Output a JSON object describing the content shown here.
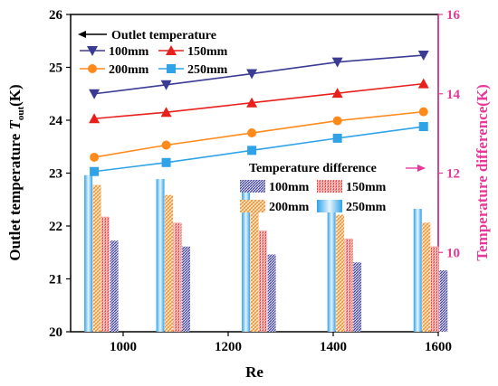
{
  "chart_data": {
    "type": "bar+line",
    "xlabel": "Re",
    "ylabel_left": {
      "main": "Outlet temperature ",
      "italic": "T",
      "sub": "out",
      "unit": "(K)"
    },
    "ylabel_right": "Temperature difference(K)",
    "x_range": [
      900,
      1600
    ],
    "x_ticks": [
      "1000",
      "1200",
      "1400",
      "1600"
    ],
    "y_left_range": [
      20,
      26
    ],
    "y_left_ticks": [
      "20",
      "21",
      "22",
      "23",
      "24",
      "25",
      "26"
    ],
    "y_right_range": [
      8,
      16
    ],
    "y_right_ticks": [
      "10",
      "12",
      "14",
      "16"
    ],
    "legend_outlet_title": "Outlet temperature",
    "legend_diff_title": "Temperature difference",
    "colors": {
      "100mm": "#3b3b94",
      "150mm": "#e8201c",
      "200mm": "#ff8a1c",
      "250mm": "#2fa2e8",
      "right_axis": "#e8389a",
      "axis": "#000000"
    },
    "line_series": [
      {
        "name": "100mm",
        "marker": "triangle-down",
        "x": [
          945,
          1082,
          1245,
          1408,
          1572
        ],
        "y": [
          24.5,
          24.67,
          24.88,
          25.1,
          25.23
        ]
      },
      {
        "name": "150mm",
        "marker": "triangle-up",
        "x": [
          945,
          1082,
          1245,
          1408,
          1572
        ],
        "y": [
          24.03,
          24.15,
          24.33,
          24.51,
          24.69
        ]
      },
      {
        "name": "200mm",
        "marker": "circle",
        "x": [
          945,
          1082,
          1245,
          1408,
          1572
        ],
        "y": [
          23.3,
          23.53,
          23.76,
          23.99,
          24.16
        ]
      },
      {
        "name": "250mm",
        "marker": "square",
        "x": [
          945,
          1082,
          1245,
          1408,
          1572
        ],
        "y": [
          23.03,
          23.2,
          23.43,
          23.66,
          23.88
        ]
      }
    ],
    "bar_categories": [
      945,
      1082,
      1245,
      1408,
      1572
    ],
    "bar_series": [
      {
        "name": "250mm",
        "values": [
          11.95,
          11.85,
          11.55,
          11.3,
          11.1
        ]
      },
      {
        "name": "200mm",
        "values": [
          11.7,
          11.45,
          11.2,
          10.95,
          10.75
        ]
      },
      {
        "name": "150mm",
        "values": [
          10.9,
          10.75,
          10.55,
          10.35,
          10.15
        ]
      },
      {
        "name": "100mm",
        "values": [
          10.3,
          10.15,
          9.95,
          9.75,
          9.55
        ]
      }
    ]
  }
}
